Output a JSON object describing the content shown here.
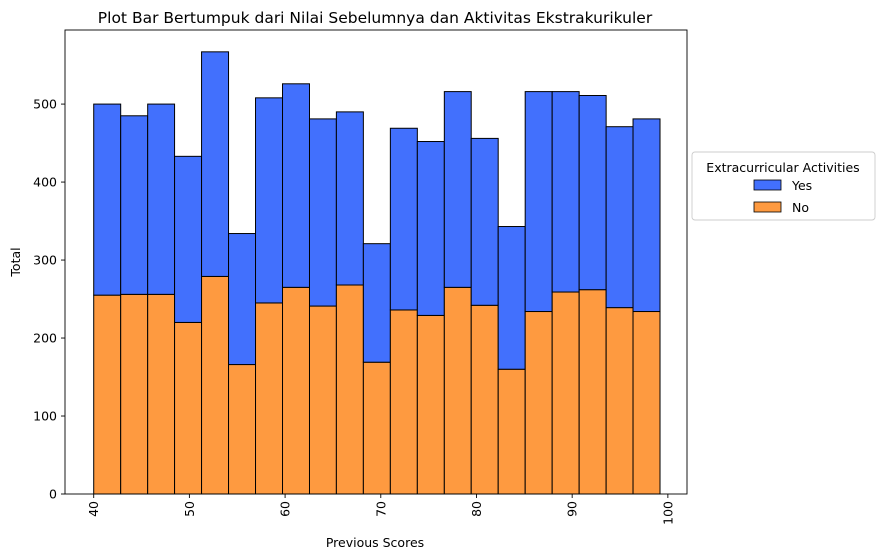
{
  "colors": {
    "yes": "#4270fd",
    "no": "#fe9a40",
    "edge": "#000000"
  },
  "chart_data": {
    "type": "bar",
    "stacked": true,
    "title": "Plot Bar Bertumpuk dari Nilai Sebelumnya dan Aktivitas Ekstrakurikuler",
    "xlabel": "Previous Scores",
    "ylabel": "Total",
    "xlim": [
      37.0,
      102.0
    ],
    "ylim": [
      0,
      595
    ],
    "bin_edges": [
      40.0,
      42.82,
      45.64,
      48.45,
      51.27,
      54.09,
      56.91,
      59.73,
      62.55,
      65.36,
      68.18,
      71.0,
      73.82,
      76.64,
      79.45,
      82.27,
      85.09,
      87.91,
      90.73,
      93.55,
      96.36,
      99.18
    ],
    "x_ticks": [
      "40",
      "50",
      "60",
      "70",
      "80",
      "90",
      "100"
    ],
    "x_tick_values": [
      40,
      50,
      60,
      70,
      80,
      90,
      100
    ],
    "y_ticks": [
      "0",
      "100",
      "200",
      "300",
      "400",
      "500"
    ],
    "y_tick_values": [
      0,
      100,
      200,
      300,
      400,
      500
    ],
    "series": [
      {
        "name": "No",
        "values": [
          255,
          256,
          256,
          220,
          279,
          166,
          245,
          265,
          241,
          268,
          169,
          236,
          229,
          265,
          242,
          160,
          234,
          259,
          262,
          239,
          234
        ]
      },
      {
        "name": "Yes",
        "values": [
          245,
          229,
          244,
          213,
          288,
          168,
          263,
          261,
          240,
          222,
          152,
          233,
          223,
          251,
          214,
          183,
          282,
          257,
          249,
          232,
          247
        ]
      }
    ],
    "legend": {
      "title": "Extracurricular Activities",
      "entries": [
        "Yes",
        "No"
      ],
      "placement": "center-right outside"
    },
    "grid": false
  }
}
